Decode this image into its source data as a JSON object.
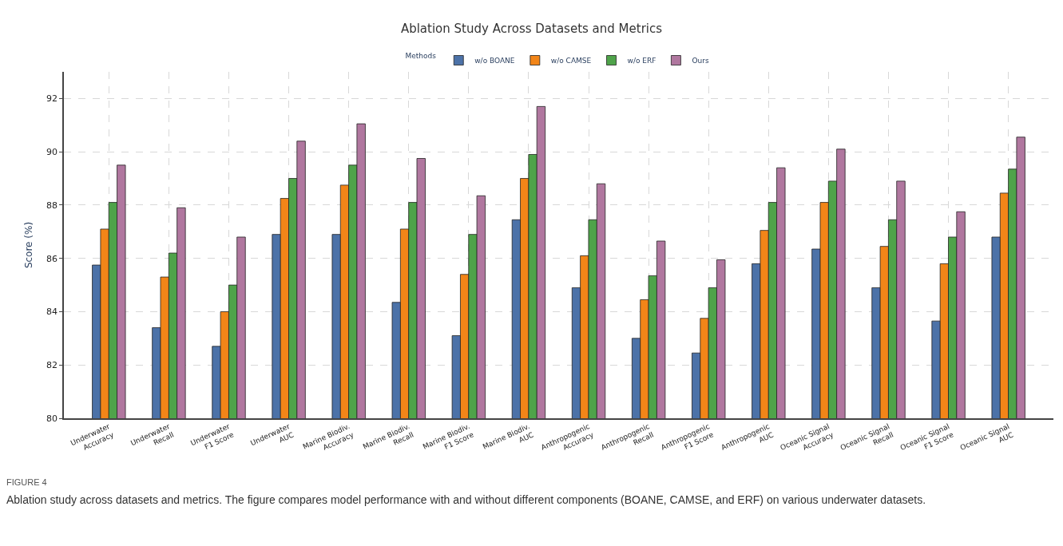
{
  "chart_data": {
    "type": "bar",
    "title": "Ablation Study Across Datasets and Metrics",
    "ylabel": "Score (%)",
    "legend_title": "Methods",
    "categories": [
      "Underwater\nAccuracy",
      "Underwater\nRecall",
      "Underwater\nF1 Score",
      "Underwater\nAUC",
      "Marine Biodiv.\nAccuracy",
      "Marine Biodiv.\nRecall",
      "Marine Biodiv.\nF1 Score",
      "Marine Biodiv.\nAUC",
      "Anthropogenic\nAccuracy",
      "Anthropogenic\nRecall",
      "Anthropogenic\nF1 Score",
      "Anthropogenic\nAUC",
      "Oceanic Signal\nAccuracy",
      "Oceanic Signal\nRecall",
      "Oceanic Signal\nF1 Score",
      "Oceanic Signal\nAUC"
    ],
    "series": [
      {
        "name": "w/o BOANE",
        "color": "#4c72a8",
        "values": [
          85.75,
          83.4,
          82.7,
          86.9,
          86.9,
          84.35,
          83.1,
          87.45,
          84.9,
          83.0,
          82.45,
          85.8,
          86.35,
          84.9,
          83.65,
          86.8
        ]
      },
      {
        "name": "w/o CAMSE",
        "color": "#f28518",
        "values": [
          87.1,
          85.3,
          84.0,
          88.25,
          88.75,
          87.1,
          85.4,
          89.0,
          86.1,
          84.45,
          83.75,
          87.05,
          88.1,
          86.45,
          85.8,
          88.45
        ]
      },
      {
        "name": "w/o ERF",
        "color": "#4fa34a",
        "values": [
          88.1,
          86.2,
          85.0,
          89.0,
          89.5,
          88.1,
          86.9,
          89.9,
          87.45,
          85.35,
          84.9,
          88.1,
          88.9,
          87.45,
          86.8,
          89.35
        ]
      },
      {
        "name": "Ours",
        "color": "#b0779f",
        "values": [
          89.5,
          87.9,
          86.8,
          90.4,
          91.05,
          89.75,
          88.35,
          91.7,
          88.8,
          86.65,
          85.95,
          89.4,
          90.1,
          88.9,
          87.75,
          90.55
        ]
      }
    ],
    "ylim": [
      80,
      93
    ],
    "yticks": [
      80,
      82,
      84,
      86,
      88,
      90,
      92
    ],
    "grid": true,
    "legend": "top",
    "annotations": [
      "FIGURE 4",
      "Ablation study across datasets and metrics. The figure compares model performance with and without different components (BOANE, CAMSE, and ERF) on various underwater datasets."
    ]
  }
}
